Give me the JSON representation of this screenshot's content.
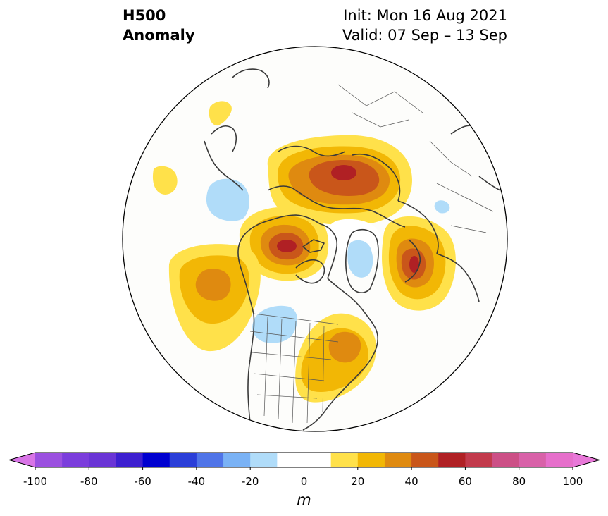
{
  "title": {
    "variable": "H500",
    "type": "Anomaly",
    "init": "Init: Mon 16 Aug 2021",
    "valid": "Valid: 07 Sep – 13 Sep"
  },
  "map": {
    "projection": "north-polar-stereographic",
    "features": [
      "coastlines",
      "country-borders",
      "us-state-borders"
    ],
    "anomaly_regions": [
      {
        "name": "eurasia-arctic-ridge",
        "peak_m": 60
      },
      {
        "name": "alaska-ridge",
        "peak_m": 60
      },
      {
        "name": "north-pacific-ridge",
        "peak_m": 40
      },
      {
        "name": "northeast-us-ridge",
        "peak_m": 40
      },
      {
        "name": "scandinavia-ridge",
        "peak_m": 60
      },
      {
        "name": "northwest-us-trough",
        "peak_m": -20
      },
      {
        "name": "greenland-trough",
        "peak_m": -20
      },
      {
        "name": "central-siberia-trough",
        "peak_m": -20
      }
    ]
  },
  "colorbar": {
    "unit": "m",
    "ticks": [
      "-100",
      "-80",
      "-60",
      "-40",
      "-20",
      "0",
      "20",
      "40",
      "60",
      "80",
      "100"
    ],
    "bins": [
      {
        "range": "-100 to -90",
        "color": "#9b50e0"
      },
      {
        "range": "-90 to -80",
        "color": "#7b3ddc"
      },
      {
        "range": "-80 to -70",
        "color": "#6a34d6"
      },
      {
        "range": "-70 to -60",
        "color": "#3d1fd0"
      },
      {
        "range": "-60 to -50",
        "color": "#0000d0"
      },
      {
        "range": "-50 to -40",
        "color": "#2a3ed8"
      },
      {
        "range": "-40 to -30",
        "color": "#4f74e8"
      },
      {
        "range": "-30 to -20",
        "color": "#7ab2f5"
      },
      {
        "range": "-20 to -10",
        "color": "#b0dcf9"
      },
      {
        "range": "-10 to 0",
        "color": "#ffffff"
      },
      {
        "range": "0 to 10",
        "color": "#ffffff"
      },
      {
        "range": "10 to 20",
        "color": "#ffe14a"
      },
      {
        "range": "20 to 30",
        "color": "#f2b705"
      },
      {
        "range": "30 to 40",
        "color": "#df8a10"
      },
      {
        "range": "40 to 50",
        "color": "#c9561a"
      },
      {
        "range": "50 to 60",
        "color": "#b02024"
      },
      {
        "range": "60 to 70",
        "color": "#c23a4c"
      },
      {
        "range": "70 to 80",
        "color": "#cc4f86"
      },
      {
        "range": "80 to 90",
        "color": "#d861a8"
      },
      {
        "range": "90 to 100",
        "color": "#e66fcb"
      }
    ],
    "extend_low_color": "#d874e6",
    "extend_high_color": "#e878d8"
  }
}
